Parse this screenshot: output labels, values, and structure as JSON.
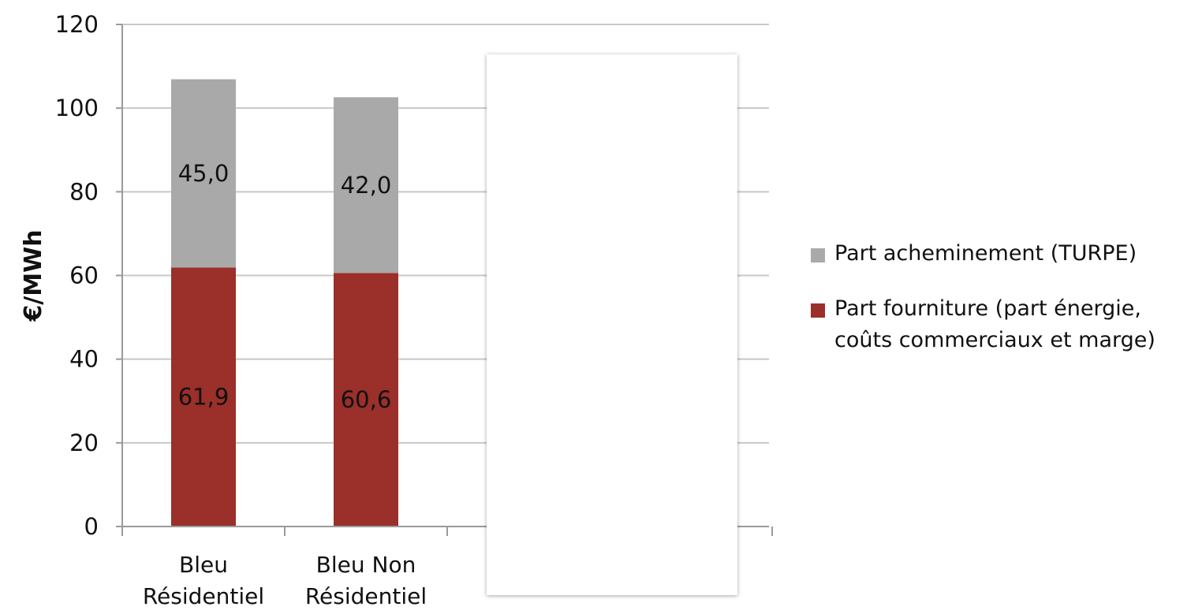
{
  "chart_data": {
    "type": "bar",
    "stacked": true,
    "categories": [
      "Bleu\nRésidentiel",
      "Bleu Non\nRésidentiel"
    ],
    "series": [
      {
        "name": "Part fourniture (part énergie, coûts commerciaux et marge)",
        "values": [
          61.9,
          60.6
        ],
        "labels": [
          "61,9",
          "60,6"
        ],
        "color": "#9b2f2a"
      },
      {
        "name": "Part acheminement (TURPE)",
        "values": [
          45.0,
          42.0
        ],
        "labels": [
          "45,0",
          "42,0"
        ],
        "color": "#a9a9a9"
      }
    ],
    "ylabel": "€/MWh",
    "xlabel": "",
    "ylim": [
      0,
      120
    ],
    "yticks": [
      0,
      20,
      40,
      60,
      80,
      100,
      120
    ],
    "ytick_labels": [
      "0",
      "20",
      "40",
      "60",
      "80",
      "100",
      "120"
    ],
    "grid": true,
    "legend_position": "right"
  },
  "legend": {
    "items": [
      {
        "label": "Part acheminement (TURPE)",
        "color": "#a9a9a9"
      },
      {
        "label": "Part fourniture (part énergie, coûts commerciaux et marge)",
        "color": "#9b2f2a"
      }
    ]
  }
}
